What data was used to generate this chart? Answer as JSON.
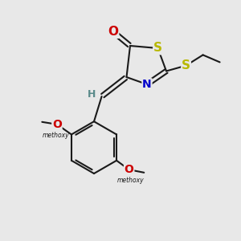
{
  "bg_color": "#e8e8e8",
  "bond_color": "#1a1a1a",
  "atom_colors": {
    "O": "#cc0000",
    "S": "#b8b800",
    "N": "#0000cc",
    "H": "#5a8a8a",
    "C": "#1a1a1a"
  },
  "figsize": [
    3.0,
    3.0
  ],
  "dpi": 100,
  "bond_lw": 1.5
}
